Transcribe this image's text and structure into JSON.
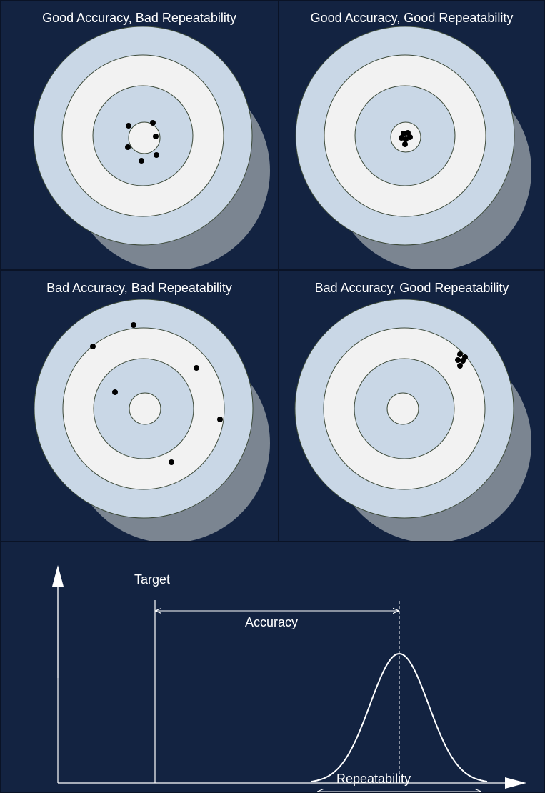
{
  "panels": [
    {
      "title": "Good Accuracy, Bad Repeatability"
    },
    {
      "title": "Good Accuracy, Good Repeatability"
    },
    {
      "title": "Bad Accuracy, Bad Repeatability"
    },
    {
      "title": "Bad Accuracy, Good Repeatability"
    }
  ],
  "diagram": {
    "target_label": "Target",
    "accuracy_label": "Accuracy",
    "repeatability_label": "Repeatability"
  },
  "colors": {
    "background": "#132341",
    "ring_blue": "#c9d7e6",
    "ring_white": "#f2f2f2",
    "shadow": "#7b8591",
    "hit": "#000000",
    "line": "#ffffff"
  }
}
